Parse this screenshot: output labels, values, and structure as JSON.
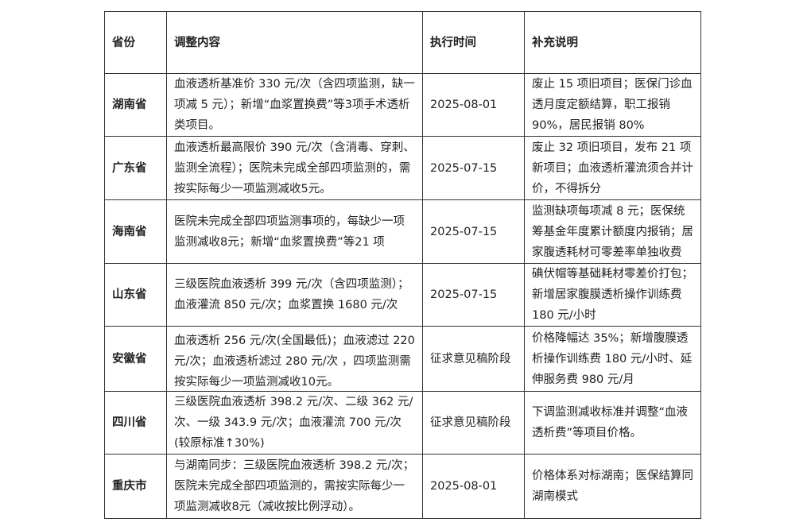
{
  "headers": [
    "省份",
    "调整内容",
    "执行时间",
    "补充说明"
  ],
  "rows": [
    {
      "province": "湖南省",
      "content": "血液透析基准价 330 元/次（含四项监测，缺一项减 5 元）；新增“血浆置换费”等3项手术透析类项目。",
      "date": "2025-08-01",
      "note": "废止 15 项旧项目；医保门诊血透月度定额结算，职工报销 90%，居民报销 80%"
    },
    {
      "province": "广东省",
      "content": "血液透析最高限价 390 元/次（含消毒、穿刺、监测全流程）；医院未完成全部四项监测的，需按实际每少一项监测减收5元。",
      "date": "2025-07-15",
      "note": "废止 32 项旧项目，发布 21 项新项目；血液透析灌流须合并计价，不得拆分"
    },
    {
      "province": "海南省",
      "content": "医院未完成全部四项监测事项的，每缺少一项监测减收8元；新增“血浆置换费”等21 项",
      "date": "2025-07-15",
      "note": "监测缺项每项减 8 元；医保统筹基金年度累计额度内报销；居家腹透耗材可零差率单独收费"
    },
    {
      "province": "山东省",
      "content": "三级医院血液透析 399 元/次（含四项监测）；血液灌流 850 元/次；血浆置换 1680 元/次",
      "date": "2025-07-15",
      "note": "碘伏帽等基础耗材零差价打包；新增居家腹膜透析操作训练费 180 元/小时"
    },
    {
      "province": "安徽省",
      "content": "血液透析 256 元/次(全国最低)；血液滤过 220 元/次；血液透析滤过 280 元/次 ，四项监测需按实际每少一项监测减收10元。",
      "date": "征求意见稿阶段",
      "note": "价格降幅达 35%；新增腹膜透析操作训练费 180 元/小时、延伸服务费 980 元/月"
    },
    {
      "province": "四川省",
      "content": "三级医院血液透析 398.2 元/次、二级 362 元/次、一级 343.9 元/次；血液灌流 700 元/次 (较原标准↑30%)",
      "date": "征求意见稿阶段",
      "note": "下调监测减收标准并调整“血液透析费”等项目价格。"
    },
    {
      "province": "重庆市",
      "content": "与湖南同步：三级医院血液透析 398.2 元/次；医院未完成全部四项监测的，需按实际每少一项监测减收8元（减收按比例浮动）。",
      "date": "2025-08-01",
      "note": "价格体系对标湖南；医保结算同湖南模式"
    }
  ]
}
